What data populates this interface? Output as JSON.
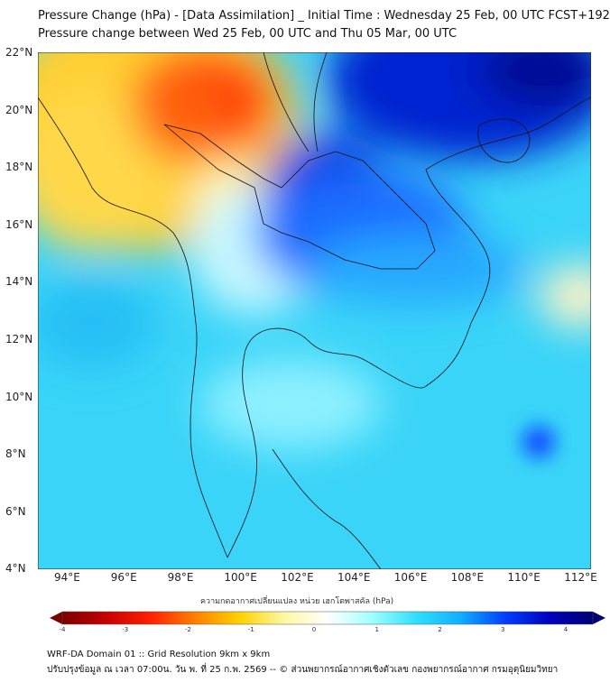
{
  "title": {
    "line1": "Pressure Change (hPa) - [Data Assimilation] _ Initial Time : Wednesday 25 Feb, 00 UTC FCST+192",
    "line2": "Pressure change between Wed 25 Feb, 00 UTC and Thu 05 Mar, 00 UTC"
  },
  "map": {
    "lat_labels": [
      "22°N",
      "20°N",
      "18°N",
      "16°N",
      "14°N",
      "12°N",
      "10°N",
      "8°N",
      "6°N",
      "4°N"
    ],
    "lon_labels": [
      "94°E",
      "96°E",
      "98°E",
      "100°E",
      "102°E",
      "104°E",
      "106°E",
      "108°E",
      "110°E",
      "112°E"
    ],
    "extent": {
      "lon": [
        93,
        112.5
      ],
      "lat": [
        4,
        22
      ]
    }
  },
  "colorbar": {
    "title": "ความกดอากาศเปลี่ยนแปลง หน่วย เฮกโตพาสคัล (hPa)",
    "ticks": [
      "-4",
      "-3",
      "-2",
      "-1",
      "0",
      "1",
      "2",
      "3",
      "4"
    ],
    "range": [
      -4,
      4
    ],
    "colors": [
      "#7a0000",
      "#c80000",
      "#ff2000",
      "#ff8000",
      "#ffd000",
      "#fff8a0",
      "#ffffff",
      "#a0ffff",
      "#30e0ff",
      "#10b0ff",
      "#0040ff",
      "#0000c0",
      "#000070"
    ]
  },
  "footer": {
    "line1": "WRF-DA Domain 01 :: Grid Resolution 9km x 9km",
    "line2": "ปรับปรุงข้อมูล ณ เวลา 07:00น. วัน พ. ที่ 25 ก.พ. 2569 -- © ส่วนพยากรณ์อากาศเชิงตัวเลข กองพยากรณ์อากาศ กรมอุตุนิยมวิทยา"
  }
}
